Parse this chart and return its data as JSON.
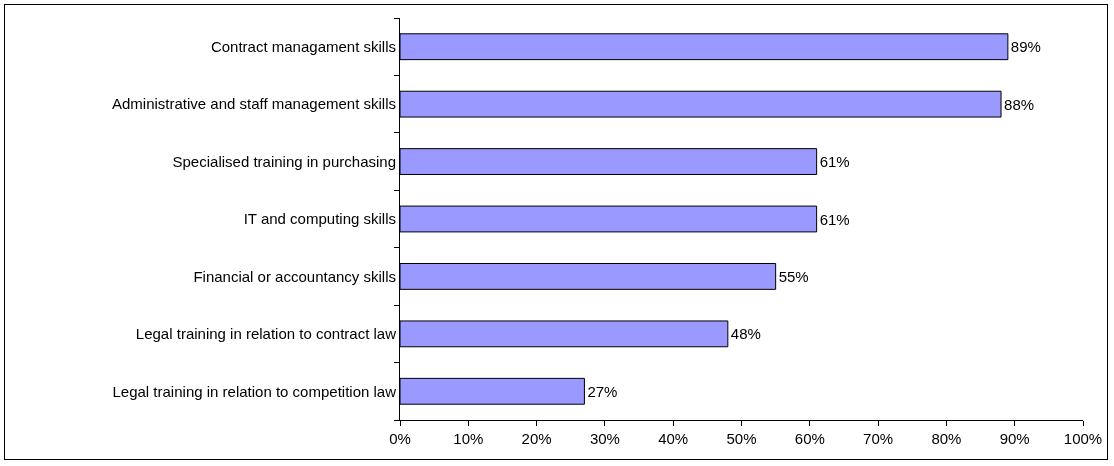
{
  "chart_data": {
    "type": "bar",
    "orientation": "horizontal",
    "categories": [
      "Contract managament skills",
      "Administrative and staff management skills",
      "Specialised training in purchasing",
      "IT and computing skills",
      "Financial or accountancy skills",
      "Legal training in relation to contract law",
      "Legal training in relation to competition law"
    ],
    "values": [
      89,
      88,
      61,
      61,
      55,
      48,
      27
    ],
    "value_labels": [
      "89%",
      "88%",
      "61%",
      "61%",
      "55%",
      "48%",
      "27%"
    ],
    "color": "#9999ff",
    "xlim": [
      0,
      100
    ],
    "xticks": [
      {
        "value": 0,
        "label": "0%"
      },
      {
        "value": 10,
        "label": "10%"
      },
      {
        "value": 20,
        "label": "20%"
      },
      {
        "value": 30,
        "label": "30%"
      },
      {
        "value": 40,
        "label": "40%"
      },
      {
        "value": 50,
        "label": "50%"
      },
      {
        "value": 60,
        "label": "60%"
      },
      {
        "value": 70,
        "label": "70%"
      },
      {
        "value": 80,
        "label": "80%"
      },
      {
        "value": 90,
        "label": "90%"
      },
      {
        "value": 100,
        "label": "100%"
      }
    ],
    "grid": false
  }
}
